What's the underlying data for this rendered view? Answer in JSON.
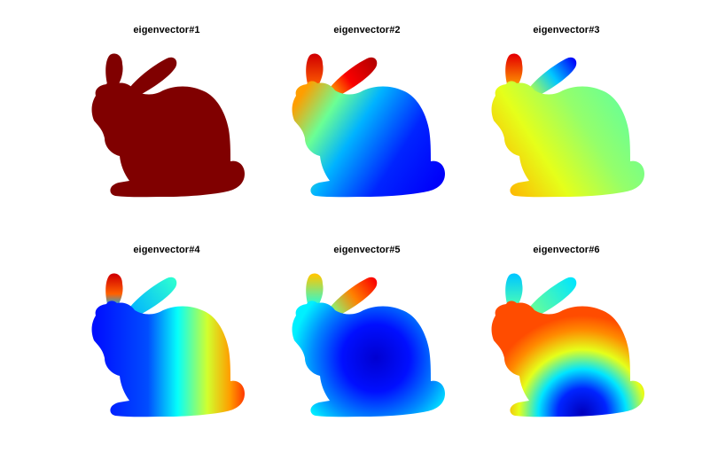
{
  "figure": {
    "colormap": "jet",
    "background": "#ffffff",
    "panels": [
      {
        "title": "eigenvector#1",
        "field": "constant",
        "constant_color": "#800000"
      },
      {
        "title": "eigenvector#2",
        "field": "head-to-tail"
      },
      {
        "title": "eigenvector#3",
        "field": "head-vs-ear-tip"
      },
      {
        "title": "eigenvector#4",
        "field": "left-to-right-with-ear-tip"
      },
      {
        "title": "eigenvector#5",
        "field": "body-center-low"
      },
      {
        "title": "eigenvector#6",
        "field": "radial-from-belly"
      }
    ]
  }
}
